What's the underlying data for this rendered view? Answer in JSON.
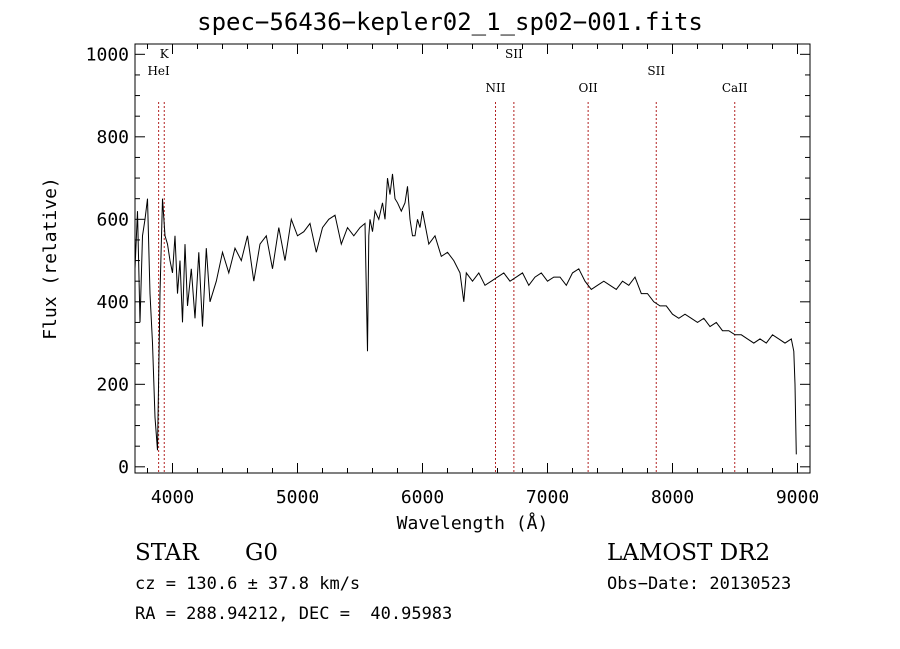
{
  "page": {
    "title": "spec−56436−kepler02_1_sp02−001.fits",
    "object_class": "STAR",
    "subclass": "G0",
    "survey": "LAMOST DR2",
    "redshift_text": "cz = 130.6 ± 37.8 km/s",
    "obs_date_text": "Obs−Date: 20130523",
    "coords_text": "RA = 288.94212, DEC =  40.95983"
  },
  "chart_data": {
    "type": "line",
    "xlabel": "Wavelength (Å)",
    "ylabel": "Flux (relative)",
    "xlim": [
      3700,
      9100
    ],
    "ylim": [
      -15,
      1025
    ],
    "xticks": [
      4000,
      5000,
      6000,
      7000,
      8000,
      9000
    ],
    "yticks": [
      0,
      200,
      400,
      600,
      800,
      1000
    ],
    "x_minor_step": 200,
    "y_minor_step": 50,
    "grid": false,
    "line_color": "#000000",
    "marker_color": "#b22222",
    "series": [
      {
        "x": [
          3700,
          3720,
          3740,
          3760,
          3780,
          3800,
          3820,
          3840,
          3860,
          3880,
          3900,
          3920,
          3940,
          3960,
          3980,
          4000,
          4020,
          4040,
          4060,
          4080,
          4100,
          4120,
          4150,
          4180,
          4210,
          4240,
          4270,
          4300,
          4350,
          4400,
          4450,
          4500,
          4550,
          4600,
          4650,
          4700,
          4750,
          4800,
          4850,
          4900,
          4950,
          5000,
          5050,
          5100,
          5150,
          5200,
          5250,
          5300,
          5350,
          5400,
          5450,
          5500,
          5540,
          5560,
          5570,
          5580,
          5600,
          5620,
          5650,
          5680,
          5700,
          5720,
          5740,
          5760,
          5780,
          5800,
          5830,
          5860,
          5880,
          5900,
          5920,
          5940,
          5960,
          5980,
          6000,
          6050,
          6100,
          6150,
          6200,
          6250,
          6300,
          6330,
          6350,
          6400,
          6450,
          6500,
          6550,
          6600,
          6650,
          6700,
          6750,
          6800,
          6850,
          6900,
          6950,
          7000,
          7050,
          7100,
          7150,
          7200,
          7250,
          7300,
          7350,
          7400,
          7450,
          7500,
          7550,
          7600,
          7650,
          7700,
          7750,
          7800,
          7850,
          7900,
          7950,
          8000,
          8050,
          8100,
          8150,
          8200,
          8250,
          8300,
          8350,
          8400,
          8450,
          8500,
          8550,
          8600,
          8650,
          8700,
          8750,
          8800,
          8850,
          8900,
          8950,
          8970,
          8980,
          8985,
          8990
        ],
        "y": [
          480,
          620,
          350,
          560,
          600,
          650,
          420,
          300,
          120,
          40,
          420,
          650,
          560,
          540,
          500,
          470,
          560,
          420,
          500,
          350,
          540,
          390,
          480,
          360,
          520,
          340,
          530,
          400,
          450,
          520,
          470,
          530,
          500,
          560,
          450,
          540,
          560,
          480,
          580,
          500,
          600,
          560,
          570,
          590,
          520,
          580,
          600,
          610,
          540,
          580,
          560,
          580,
          590,
          280,
          560,
          600,
          570,
          620,
          600,
          640,
          600,
          700,
          660,
          710,
          650,
          640,
          620,
          640,
          680,
          600,
          560,
          560,
          600,
          580,
          620,
          540,
          560,
          510,
          520,
          500,
          470,
          400,
          470,
          450,
          470,
          440,
          450,
          460,
          470,
          450,
          460,
          470,
          440,
          460,
          470,
          450,
          460,
          460,
          440,
          470,
          480,
          450,
          430,
          440,
          450,
          440,
          430,
          450,
          440,
          460,
          420,
          420,
          400,
          390,
          390,
          370,
          360,
          370,
          360,
          350,
          360,
          340,
          350,
          330,
          330,
          320,
          320,
          310,
          300,
          310,
          300,
          320,
          310,
          300,
          310,
          280,
          200,
          120,
          30
        ]
      }
    ],
    "line_markers": [
      {
        "label": "K",
        "wavelength": 3934
      },
      {
        "label": "HeI",
        "wavelength": 3889
      },
      {
        "label": "SII",
        "wavelength": 6731
      },
      {
        "label": "NII",
        "wavelength": 6584
      },
      {
        "label": "OII",
        "wavelength": 7325
      },
      {
        "label": "SII",
        "wavelength": 7870
      },
      {
        "label": "CaII",
        "wavelength": 8498
      }
    ]
  }
}
